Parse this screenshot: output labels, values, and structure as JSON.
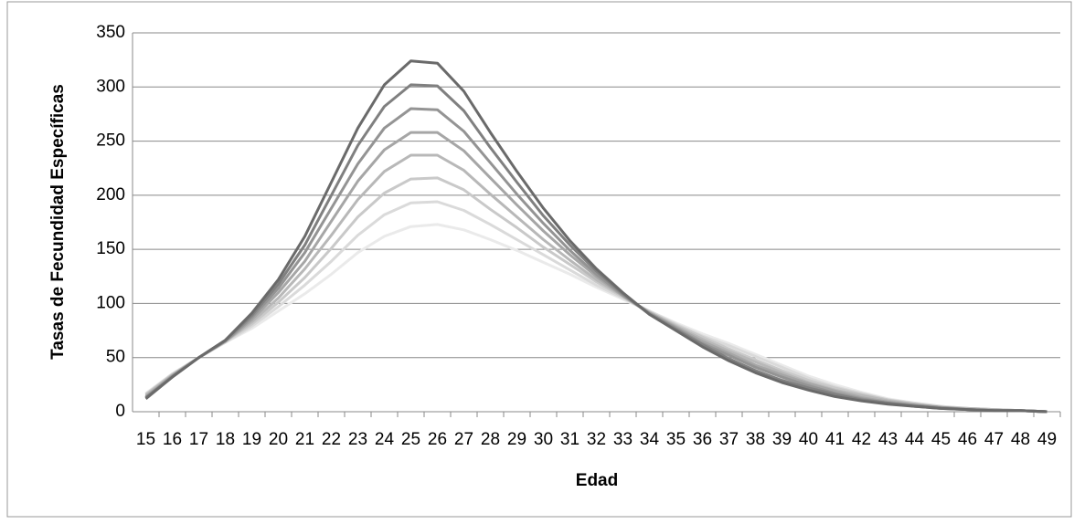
{
  "chart_data": {
    "type": "line",
    "ylabel": "Tasas de Fecundidad Específicas",
    "xlabel": "Edad",
    "categories": [
      "15",
      "16",
      "17",
      "18",
      "19",
      "20",
      "21",
      "22",
      "23",
      "24",
      "25",
      "26",
      "27",
      "28",
      "29",
      "30",
      "31",
      "32",
      "33",
      "34",
      "35",
      "36",
      "37",
      "38",
      "39",
      "40",
      "41",
      "42",
      "43",
      "44",
      "45",
      "46",
      "47",
      "48",
      "49"
    ],
    "ylim": [
      0,
      350
    ],
    "yticks": [
      0,
      50,
      100,
      150,
      200,
      250,
      300,
      350
    ],
    "grid": true,
    "series": [
      {
        "color": "#eaeaea",
        "values": [
          17,
          35,
          50,
          64,
          77,
          93,
          109,
          127,
          147,
          162,
          171,
          173,
          168,
          159,
          149,
          138,
          127,
          115,
          104,
          93,
          82,
          72,
          63,
          53,
          43,
          33,
          25,
          18,
          12,
          8,
          5,
          3,
          2,
          1,
          0
        ]
      },
      {
        "color": "#dadada",
        "values": [
          16,
          35,
          50,
          64,
          79,
          97,
          117,
          139,
          163,
          182,
          193,
          194,
          186,
          173,
          159,
          145,
          131,
          117,
          105,
          93,
          81,
          70,
          61,
          51,
          41,
          31,
          23,
          17,
          11,
          8,
          5,
          3,
          2,
          1,
          0
        ]
      },
      {
        "color": "#c9c9c9",
        "values": [
          16,
          34,
          50,
          65,
          81,
          101,
          124,
          151,
          180,
          202,
          215,
          216,
          205,
          187,
          170,
          152,
          136,
          120,
          106,
          92,
          80,
          69,
          58,
          48,
          38,
          29,
          22,
          16,
          11,
          7,
          4,
          3,
          2,
          1,
          0
        ]
      },
      {
        "color": "#b8b8b8",
        "values": [
          15,
          34,
          50,
          65,
          83,
          105,
          132,
          163,
          196,
          222,
          237,
          237,
          223,
          201,
          180,
          159,
          140,
          122,
          107,
          92,
          79,
          67,
          56,
          46,
          36,
          27,
          20,
          15,
          10,
          7,
          4,
          3,
          2,
          1,
          0
        ]
      },
      {
        "color": "#a6a6a6",
        "values": [
          14,
          33,
          50,
          65,
          85,
          110,
          139,
          176,
          213,
          242,
          258,
          258,
          241,
          216,
          191,
          167,
          145,
          125,
          107,
          91,
          78,
          65,
          54,
          43,
          34,
          26,
          19,
          13,
          9,
          6,
          4,
          2,
          1,
          1,
          0
        ]
      },
      {
        "color": "#949494",
        "values": [
          13,
          33,
          50,
          65,
          87,
          114,
          147,
          188,
          229,
          262,
          280,
          279,
          259,
          230,
          201,
          174,
          149,
          127,
          108,
          91,
          77,
          63,
          52,
          41,
          32,
          24,
          17,
          12,
          8,
          6,
          4,
          2,
          1,
          1,
          0
        ]
      },
      {
        "color": "#808080",
        "values": [
          13,
          32,
          50,
          66,
          89,
          118,
          154,
          200,
          246,
          282,
          302,
          301,
          278,
          244,
          212,
          181,
          154,
          130,
          109,
          90,
          76,
          62,
          49,
          38,
          29,
          22,
          16,
          11,
          8,
          5,
          3,
          2,
          1,
          1,
          0
        ]
      },
      {
        "color": "#6a6a6a",
        "values": [
          12,
          32,
          50,
          66,
          91,
          122,
          162,
          212,
          262,
          302,
          324,
          322,
          296,
          258,
          222,
          188,
          158,
          132,
          110,
          90,
          75,
          60,
          47,
          36,
          27,
          20,
          14,
          10,
          7,
          5,
          3,
          2,
          1,
          1,
          0
        ]
      }
    ]
  }
}
